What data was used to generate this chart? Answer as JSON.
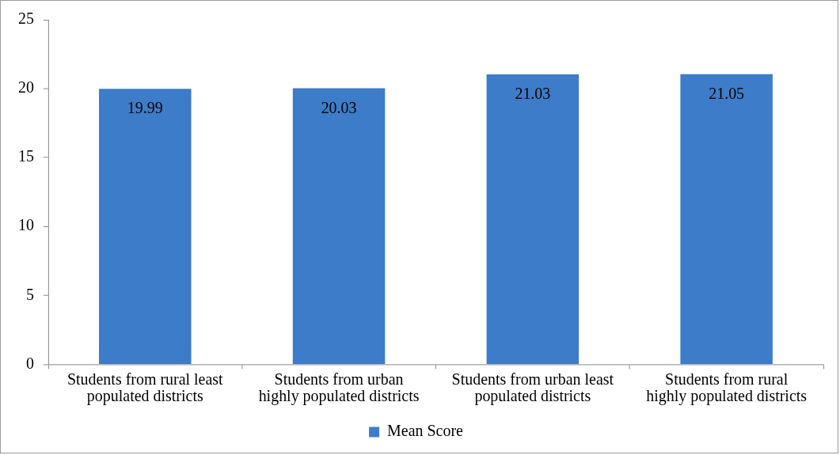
{
  "chart_data": {
    "type": "bar",
    "categories": [
      "Students from rural least populated districts",
      "Students from urban highly populated districts",
      "Students from urban least populated districts",
      "Students from rural highly populated districts"
    ],
    "series": [
      {
        "name": "Mean Score",
        "color": "#3d7cc9",
        "values": [
          19.99,
          20.03,
          21.03,
          21.05
        ]
      }
    ],
    "ylim": [
      0,
      25
    ],
    "yticks": [
      0,
      5,
      10,
      15,
      20,
      25
    ],
    "grid": false,
    "legend": "bottom",
    "data_labels": true
  }
}
